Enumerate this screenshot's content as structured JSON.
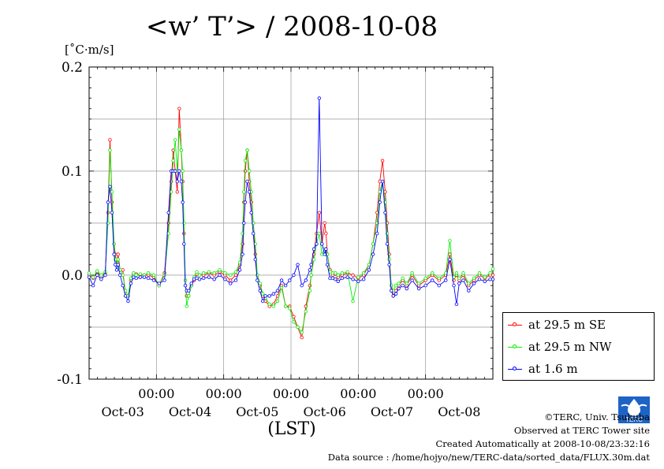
{
  "title": "<w’ T’> / 2008-10-08",
  "unit": "[˚C·m/s]",
  "xlabel": "(LST)",
  "credits": {
    "line1": "©TERC, Univ. Tsukuba",
    "line2": "Observed at TERC Tower site",
    "line3": "Created Automatically at 2008-10-08/23:32:16",
    "line4": "Data source : /home/hojyo/new/TERC-data/sorted_data/FLUX.30m.dat"
  },
  "logo_text": "TERC",
  "colors": {
    "se": "#ff0000",
    "nw": "#00ee00",
    "low": "#0000ff",
    "grid": "#999999"
  },
  "chart_data": {
    "type": "line",
    "title": "<w’ T’> / 2008-10-08",
    "ylabel": "[˚C·m/s]",
    "xlabel": "(LST)",
    "ylim": [
      -0.1,
      0.2
    ],
    "yticks": [
      -0.1,
      0.0,
      0.1,
      0.2
    ],
    "ytick_labels": [
      "-0.1",
      "0.0",
      "0.1",
      "0.2"
    ],
    "xlim": [
      0,
      6
    ],
    "xticks": [
      1,
      2,
      3,
      4,
      5
    ],
    "xtick_labels": [
      "00:00",
      "00:00",
      "00:00",
      "00:00",
      "00:00"
    ],
    "day_labels": [
      {
        "x": 0.5,
        "label": "Oct-03"
      },
      {
        "x": 1.5,
        "label": "Oct-04"
      },
      {
        "x": 2.5,
        "label": "Oct-05"
      },
      {
        "x": 3.5,
        "label": "Oct-06"
      },
      {
        "x": 4.5,
        "label": "Oct-07"
      },
      {
        "x": 5.5,
        "label": "Oct-08"
      }
    ],
    "grid": true,
    "legend_position": "right",
    "series": [
      {
        "name": "at 29.5 m SE",
        "color": "#ff0000",
        "x": [
          0.0,
          0.06,
          0.12,
          0.18,
          0.24,
          0.28,
          0.31,
          0.34,
          0.37,
          0.39,
          0.41,
          0.43,
          0.46,
          0.5,
          0.54,
          0.58,
          0.62,
          0.66,
          0.7,
          0.76,
          0.82,
          0.88,
          0.96,
          1.04,
          1.12,
          1.18,
          1.22,
          1.25,
          1.28,
          1.31,
          1.34,
          1.37,
          1.39,
          1.41,
          1.43,
          1.45,
          1.48,
          1.52,
          1.56,
          1.6,
          1.64,
          1.7,
          1.78,
          1.86,
          1.94,
          2.02,
          2.1,
          2.18,
          2.24,
          2.28,
          2.3,
          2.32,
          2.35,
          2.38,
          2.41,
          2.44,
          2.47,
          2.5,
          2.54,
          2.58,
          2.62,
          2.68,
          2.74,
          2.8,
          2.86,
          2.92,
          2.98,
          3.04,
          3.1,
          3.16,
          3.22,
          3.28,
          3.3,
          3.34,
          3.38,
          3.42,
          3.46,
          3.5,
          3.52,
          3.54,
          3.58,
          3.62,
          3.66,
          3.7,
          3.76,
          3.84,
          3.92,
          4.0,
          4.08,
          4.16,
          4.22,
          4.28,
          4.32,
          4.36,
          4.4,
          4.43,
          4.46,
          4.49,
          4.52,
          4.56,
          4.6,
          4.66,
          4.72,
          4.8,
          4.9,
          5.0,
          5.1,
          5.2,
          5.3,
          5.36,
          5.42,
          5.46,
          5.5,
          5.56,
          5.64,
          5.72,
          5.8,
          5.88,
          5.96,
          6.0
        ],
        "y": [
          0.0,
          -0.003,
          0.003,
          -0.002,
          0.002,
          0.06,
          0.13,
          0.07,
          0.03,
          0.02,
          0.01,
          0.02,
          0.005,
          0.005,
          -0.02,
          -0.02,
          -0.005,
          0.0,
          0.001,
          0.0,
          0.0,
          0.0,
          -0.002,
          -0.01,
          0.002,
          0.05,
          0.09,
          0.12,
          0.1,
          0.08,
          0.16,
          0.12,
          0.09,
          0.04,
          -0.01,
          -0.02,
          -0.02,
          -0.01,
          -0.005,
          0.001,
          0.0,
          0.0,
          0.002,
          0.0,
          0.003,
          0.0,
          -0.005,
          0.0,
          0.01,
          0.03,
          0.07,
          0.1,
          0.12,
          0.09,
          0.07,
          0.05,
          0.02,
          0.0,
          -0.01,
          -0.02,
          -0.025,
          -0.03,
          -0.028,
          -0.02,
          -0.01,
          -0.03,
          -0.03,
          -0.04,
          -0.05,
          -0.06,
          -0.03,
          -0.01,
          0.0,
          0.02,
          0.04,
          0.06,
          0.03,
          0.05,
          0.04,
          0.02,
          0.005,
          0.0,
          0.001,
          -0.002,
          0.0,
          0.002,
          0.0,
          -0.003,
          0.0,
          0.01,
          0.03,
          0.06,
          0.09,
          0.11,
          0.08,
          0.05,
          0.02,
          -0.01,
          -0.02,
          -0.015,
          -0.01,
          -0.005,
          -0.01,
          0.0,
          -0.01,
          -0.005,
          0.0,
          -0.005,
          0.0,
          0.02,
          -0.005,
          0.0,
          -0.005,
          0.0,
          -0.01,
          -0.005,
          0.0,
          -0.003,
          0.0,
          0.0
        ]
      },
      {
        "name": "at 29.5 m NW",
        "color": "#00ee00",
        "x": [
          0.0,
          0.06,
          0.12,
          0.18,
          0.24,
          0.28,
          0.31,
          0.34,
          0.37,
          0.39,
          0.41,
          0.43,
          0.46,
          0.5,
          0.54,
          0.58,
          0.62,
          0.66,
          0.7,
          0.76,
          0.82,
          0.88,
          0.96,
          1.04,
          1.12,
          1.18,
          1.22,
          1.25,
          1.28,
          1.31,
          1.34,
          1.37,
          1.39,
          1.41,
          1.43,
          1.45,
          1.48,
          1.52,
          1.56,
          1.6,
          1.64,
          1.7,
          1.78,
          1.86,
          1.94,
          2.02,
          2.1,
          2.18,
          2.24,
          2.28,
          2.3,
          2.32,
          2.35,
          2.38,
          2.41,
          2.44,
          2.47,
          2.5,
          2.54,
          2.58,
          2.62,
          2.68,
          2.74,
          2.8,
          2.86,
          2.92,
          2.98,
          3.04,
          3.1,
          3.16,
          3.22,
          3.28,
          3.3,
          3.34,
          3.38,
          3.42,
          3.46,
          3.5,
          3.52,
          3.54,
          3.58,
          3.62,
          3.66,
          3.7,
          3.76,
          3.84,
          3.92,
          4.0,
          4.08,
          4.16,
          4.22,
          4.28,
          4.32,
          4.36,
          4.4,
          4.43,
          4.46,
          4.49,
          4.52,
          4.56,
          4.6,
          4.66,
          4.72,
          4.8,
          4.9,
          5.0,
          5.1,
          5.2,
          5.3,
          5.36,
          5.42,
          5.46,
          5.5,
          5.56,
          5.64,
          5.72,
          5.8,
          5.88,
          5.96,
          6.0
        ],
        "y": [
          0.002,
          -0.002,
          0.004,
          0.0,
          0.003,
          0.05,
          0.12,
          0.08,
          0.03,
          0.015,
          0.01,
          0.015,
          0.005,
          0.0,
          -0.015,
          -0.02,
          -0.003,
          0.002,
          0.0,
          0.001,
          0.0,
          0.002,
          0.0,
          -0.01,
          0.0,
          0.04,
          0.08,
          0.11,
          0.13,
          0.1,
          0.14,
          0.12,
          0.1,
          0.05,
          -0.005,
          -0.03,
          -0.02,
          -0.01,
          -0.002,
          0.003,
          0.0,
          0.002,
          0.003,
          0.002,
          0.005,
          0.002,
          0.0,
          0.003,
          0.012,
          0.04,
          0.08,
          0.11,
          0.12,
          0.1,
          0.08,
          0.05,
          0.03,
          0.0,
          -0.008,
          -0.018,
          -0.022,
          -0.028,
          -0.03,
          -0.025,
          -0.012,
          -0.03,
          -0.032,
          -0.045,
          -0.05,
          -0.055,
          -0.035,
          -0.015,
          0.0,
          0.015,
          0.03,
          0.04,
          0.02,
          0.025,
          0.02,
          0.02,
          0.003,
          0.002,
          0.002,
          0.0,
          0.002,
          0.003,
          -0.025,
          -0.002,
          0.002,
          0.01,
          0.03,
          0.05,
          0.08,
          0.09,
          0.07,
          0.04,
          0.015,
          -0.01,
          -0.015,
          -0.01,
          -0.008,
          -0.003,
          -0.008,
          0.002,
          -0.008,
          -0.003,
          0.002,
          -0.003,
          0.002,
          0.033,
          -0.002,
          0.002,
          -0.003,
          0.002,
          -0.008,
          -0.003,
          0.002,
          -0.002,
          0.002,
          0.006
        ]
      },
      {
        "name": "at 1.6 m",
        "color": "#0000ff",
        "x": [
          0.0,
          0.06,
          0.12,
          0.18,
          0.24,
          0.28,
          0.31,
          0.34,
          0.37,
          0.39,
          0.41,
          0.43,
          0.46,
          0.5,
          0.54,
          0.58,
          0.62,
          0.66,
          0.7,
          0.76,
          0.82,
          0.88,
          0.96,
          1.04,
          1.12,
          1.18,
          1.22,
          1.25,
          1.28,
          1.31,
          1.34,
          1.37,
          1.39,
          1.41,
          1.43,
          1.45,
          1.48,
          1.52,
          1.56,
          1.6,
          1.64,
          1.7,
          1.78,
          1.86,
          1.94,
          2.02,
          2.1,
          2.18,
          2.24,
          2.28,
          2.3,
          2.32,
          2.35,
          2.38,
          2.41,
          2.44,
          2.47,
          2.5,
          2.54,
          2.58,
          2.62,
          2.68,
          2.74,
          2.8,
          2.86,
          2.92,
          2.98,
          3.04,
          3.1,
          3.16,
          3.22,
          3.28,
          3.3,
          3.34,
          3.38,
          3.42,
          3.46,
          3.5,
          3.52,
          3.54,
          3.58,
          3.62,
          3.66,
          3.7,
          3.76,
          3.84,
          3.92,
          4.0,
          4.08,
          4.16,
          4.22,
          4.28,
          4.32,
          4.36,
          4.4,
          4.43,
          4.46,
          4.49,
          4.52,
          4.56,
          4.6,
          4.66,
          4.72,
          4.8,
          4.9,
          5.0,
          5.1,
          5.2,
          5.3,
          5.36,
          5.42,
          5.46,
          5.5,
          5.56,
          5.64,
          5.72,
          5.8,
          5.88,
          5.96,
          6.0
        ],
        "y": [
          -0.002,
          -0.01,
          0.0,
          -0.004,
          0.0,
          0.07,
          0.085,
          0.06,
          0.02,
          0.01,
          0.005,
          0.01,
          0.0,
          -0.01,
          -0.02,
          -0.025,
          -0.008,
          -0.002,
          -0.003,
          -0.002,
          -0.002,
          -0.003,
          -0.005,
          -0.008,
          -0.005,
          0.06,
          0.1,
          0.1,
          0.1,
          0.09,
          0.1,
          0.09,
          0.07,
          0.03,
          -0.01,
          -0.015,
          -0.015,
          -0.008,
          -0.004,
          -0.003,
          -0.004,
          -0.003,
          -0.002,
          -0.004,
          0.0,
          -0.004,
          -0.008,
          -0.005,
          0.005,
          0.02,
          0.05,
          0.07,
          0.09,
          0.08,
          0.06,
          0.04,
          0.015,
          -0.005,
          -0.015,
          -0.025,
          -0.02,
          -0.02,
          -0.018,
          -0.015,
          -0.005,
          -0.01,
          -0.005,
          0.0,
          0.01,
          -0.01,
          -0.005,
          0.005,
          0.01,
          0.025,
          0.03,
          0.17,
          0.03,
          0.02,
          0.025,
          0.01,
          -0.003,
          -0.003,
          -0.004,
          -0.006,
          -0.003,
          -0.002,
          -0.004,
          -0.006,
          -0.004,
          0.005,
          0.02,
          0.04,
          0.07,
          0.09,
          0.06,
          0.03,
          0.01,
          -0.015,
          -0.02,
          -0.018,
          -0.013,
          -0.01,
          -0.013,
          -0.005,
          -0.013,
          -0.01,
          -0.005,
          -0.01,
          -0.005,
          0.015,
          -0.01,
          -0.028,
          -0.008,
          -0.005,
          -0.015,
          -0.008,
          -0.004,
          -0.006,
          -0.004,
          -0.004
        ]
      }
    ]
  }
}
